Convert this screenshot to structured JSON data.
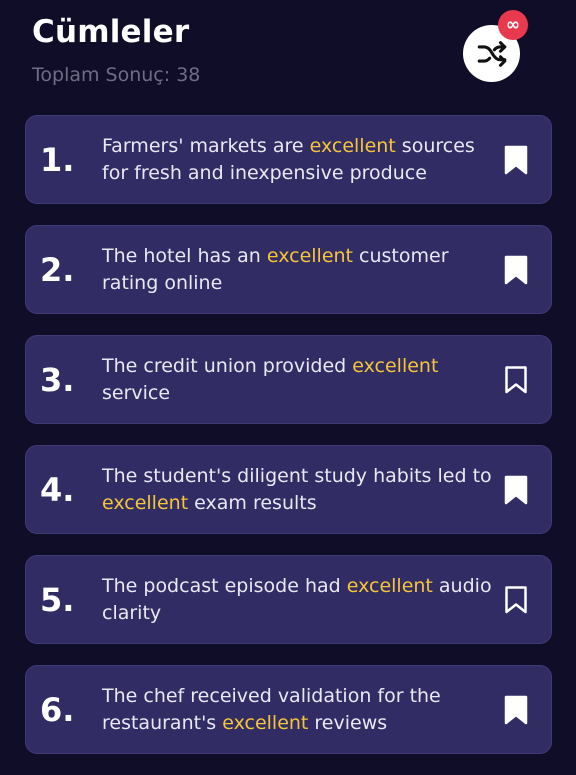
{
  "header": {
    "title": "Cümleler",
    "result_count": "Toplam Sonuç: 38",
    "shuffle_badge": "∞"
  },
  "colors": {
    "background": "#0f0d27",
    "card": "#312c63",
    "highlight": "#f5c53a",
    "badge": "#e8394f"
  },
  "sentences": [
    {
      "number": "1.",
      "before": "Farmers' markets are ",
      "highlight": "excellent",
      "after": " sources for fresh and inexpensive produce",
      "bookmarked": true
    },
    {
      "number": "2.",
      "before": "The hotel has an ",
      "highlight": "excellent",
      "after": " customer rating online",
      "bookmarked": true
    },
    {
      "number": "3.",
      "before": "The credit union provided ",
      "highlight": "excellent",
      "after": " service",
      "bookmarked": false
    },
    {
      "number": "4.",
      "before": "The student's diligent study habits led to ",
      "highlight": "excellent",
      "after": " exam results",
      "bookmarked": true
    },
    {
      "number": "5.",
      "before": "The podcast episode had ",
      "highlight": "excellent",
      "after": " audio clarity",
      "bookmarked": false
    },
    {
      "number": "6.",
      "before": "The chef received validation for the restaurant's ",
      "highlight": "excellent",
      "after": " reviews",
      "bookmarked": true
    }
  ]
}
